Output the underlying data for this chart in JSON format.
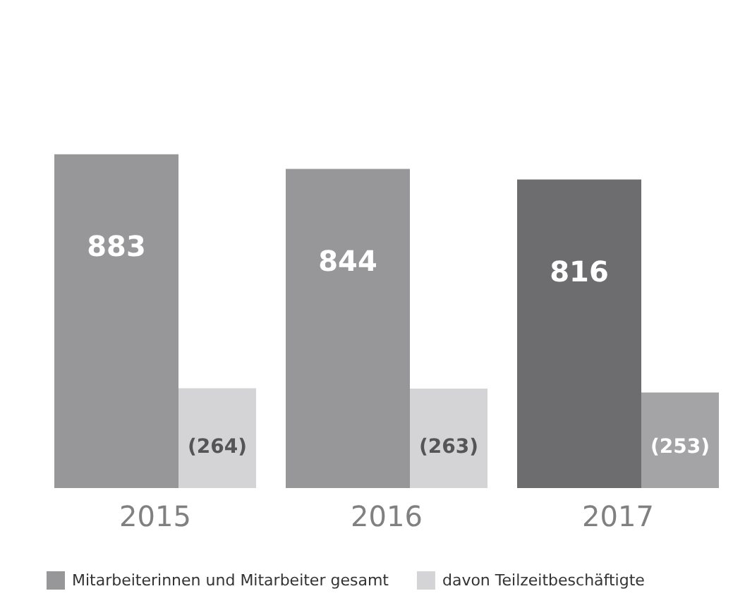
{
  "chart_data": {
    "type": "bar",
    "categories": [
      "2015",
      "2016",
      "2017"
    ],
    "series": [
      {
        "name": "Mitarbeiterinnen und Mitarbeiter gesamt",
        "color": "#97979a",
        "colors": [
          "#97979a",
          "#97979a",
          "#6d6d70"
        ],
        "values": [
          883,
          844,
          816
        ],
        "value_labels": [
          "883",
          "844",
          "816"
        ]
      },
      {
        "name": "davon Teilzeitbeschäftigte",
        "color": "#d4d4d6",
        "colors": [
          "#d4d4d6",
          "#d4d4d6",
          "#a4a4a7"
        ],
        "values": [
          264,
          263,
          253
        ],
        "value_labels": [
          "(264)",
          "(263)",
          "(253)"
        ]
      }
    ],
    "legend": "bottom left",
    "grid": false
  }
}
